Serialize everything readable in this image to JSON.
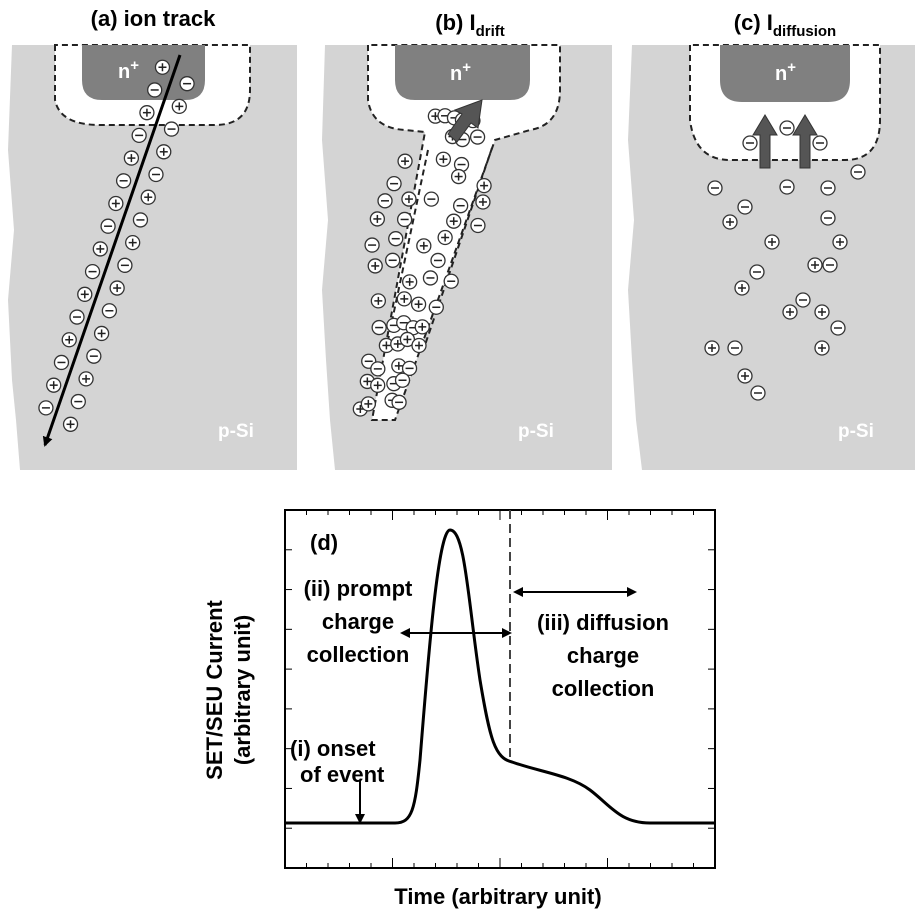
{
  "panels": [
    {
      "label": "(a) ion track",
      "region": "n",
      "region_sup": "+",
      "substrate": "p-Si"
    },
    {
      "label": "(b) I",
      "label_sub": "drift",
      "region": "n",
      "region_sup": "+",
      "substrate": "p-Si"
    },
    {
      "label": "(c) I",
      "label_sub": "diffusion",
      "region": "n",
      "region_sup": "+",
      "substrate": "p-Si"
    }
  ],
  "plot": {
    "label": "(d)",
    "y_label_lines": [
      "SET/SEU Current",
      "(arbitrary unit)"
    ],
    "x_label": "Time (arbitrary unit)",
    "annotations": [
      {
        "lines": [
          "(ii) prompt",
          "charge",
          "collection"
        ]
      },
      {
        "lines": [
          "(iii) diffusion",
          "charge",
          "collection"
        ]
      },
      {
        "lines": [
          "(i) onset",
          "of event"
        ]
      }
    ]
  }
}
